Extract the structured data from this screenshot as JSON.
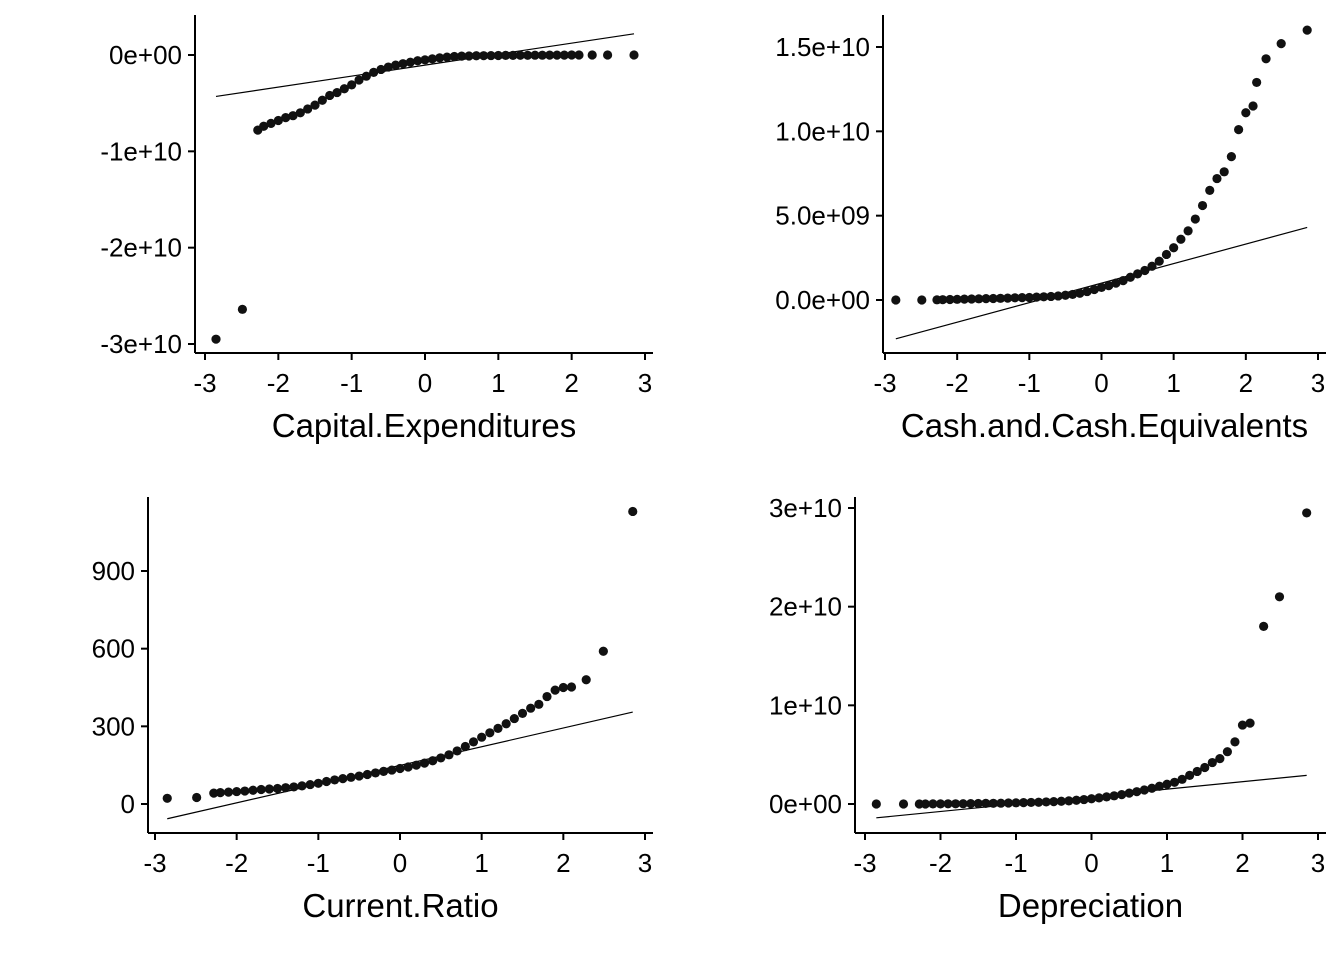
{
  "chart_data": [
    {
      "type": "scatter",
      "subtype": "qq-plot",
      "title": "",
      "xlabel": "Capital.Expenditures",
      "ylabel": "",
      "xlim": [
        -3.0,
        3.0
      ],
      "ylim": [
        -31000000000.0,
        4000000000.0
      ],
      "xticks": [
        -3,
        -2,
        -1,
        0,
        1,
        2,
        3
      ],
      "xtick_labels": [
        "-3",
        "-2",
        "-1",
        "0",
        "1",
        "2",
        "3"
      ],
      "yticks": [
        0,
        -10000000000.0,
        -20000000000.0,
        -30000000000.0
      ],
      "ytick_labels": [
        "0e+00",
        "-1e+10",
        "-2e+10",
        "-3e+10"
      ],
      "reference_line": {
        "x": [
          -2.85,
          2.85
        ],
        "y": [
          -4300000000.0,
          2200000000.0
        ]
      },
      "points": [
        [
          -2.85,
          -29500000000.0
        ],
        [
          -2.49,
          -26400000000.0
        ],
        [
          -2.28,
          -7800000000.0
        ],
        [
          -2.2,
          -7400000000.0
        ],
        [
          -2.1,
          -7100000000.0
        ],
        [
          -2.0,
          -6800000000.0
        ],
        [
          -1.9,
          -6500000000.0
        ],
        [
          -1.8,
          -6300000000.0
        ],
        [
          -1.7,
          -6000000000.0
        ],
        [
          -1.6,
          -5600000000.0
        ],
        [
          -1.5,
          -5200000000.0
        ],
        [
          -1.4,
          -4700000000.0
        ],
        [
          -1.3,
          -4200000000.0
        ],
        [
          -1.2,
          -3900000000.0
        ],
        [
          -1.1,
          -3500000000.0
        ],
        [
          -1.0,
          -3100000000.0
        ],
        [
          -0.9,
          -2600000000.0
        ],
        [
          -0.8,
          -2200000000.0
        ],
        [
          -0.7,
          -1800000000.0
        ],
        [
          -0.6,
          -1500000000.0
        ],
        [
          -0.5,
          -1250000000.0
        ],
        [
          -0.4,
          -1050000000.0
        ],
        [
          -0.3,
          -900000000.0
        ],
        [
          -0.2,
          -750000000.0
        ],
        [
          -0.1,
          -600000000.0
        ],
        [
          0.0,
          -500000000.0
        ],
        [
          0.1,
          -400000000.0
        ],
        [
          0.2,
          -300000000.0
        ],
        [
          0.3,
          -220000000.0
        ],
        [
          0.4,
          -150000000.0
        ],
        [
          0.5,
          -120000000.0
        ],
        [
          0.6,
          -100000000.0
        ],
        [
          0.7,
          -80000000.0
        ],
        [
          0.8,
          -70000000.0
        ],
        [
          0.9,
          -60000000.0
        ],
        [
          1.0,
          -50000000.0
        ],
        [
          1.1,
          -40000000.0
        ],
        [
          1.2,
          -40000000.0
        ],
        [
          1.3,
          -30000000.0
        ],
        [
          1.4,
          -30000000.0
        ],
        [
          1.5,
          -20000000.0
        ],
        [
          1.6,
          -20000000.0
        ],
        [
          1.7,
          -10000000.0
        ],
        [
          1.8,
          -10000000.0
        ],
        [
          1.9,
          -10000000.0
        ],
        [
          2.0,
          0.0
        ],
        [
          2.1,
          0.0
        ],
        [
          2.28,
          0.0
        ],
        [
          2.49,
          0.0
        ],
        [
          2.85,
          0.0
        ]
      ]
    },
    {
      "type": "scatter",
      "subtype": "qq-plot",
      "title": "",
      "xlabel": "Cash.and.Cash.Equivalents",
      "ylabel": "",
      "xlim": [
        -3.0,
        3.0
      ],
      "ylim": [
        -3200000000.0,
        16500000000.0
      ],
      "xticks": [
        -3,
        -2,
        -1,
        0,
        1,
        2,
        3
      ],
      "xtick_labels": [
        "-3",
        "-2",
        "-1",
        "0",
        "1",
        "2",
        "3"
      ],
      "yticks": [
        0,
        5000000000.0,
        10000000000.0,
        15000000000.0
      ],
      "ytick_labels": [
        "0.0e+00",
        "5.0e+09",
        "1.0e+10",
        "1.5e+10"
      ],
      "reference_line": {
        "x": [
          -2.85,
          2.85
        ],
        "y": [
          -2300000000.0,
          4300000000.0
        ]
      },
      "points": [
        [
          -2.85,
          0.0
        ],
        [
          -2.49,
          0.0
        ],
        [
          -2.28,
          10000000.0
        ],
        [
          -2.2,
          20000000.0
        ],
        [
          -2.1,
          30000000.0
        ],
        [
          -2.0,
          40000000.0
        ],
        [
          -1.9,
          50000000.0
        ],
        [
          -1.8,
          60000000.0
        ],
        [
          -1.7,
          70000000.0
        ],
        [
          -1.6,
          80000000.0
        ],
        [
          -1.5,
          90000000.0
        ],
        [
          -1.4,
          100000000.0
        ],
        [
          -1.3,
          110000000.0
        ],
        [
          -1.2,
          130000000.0
        ],
        [
          -1.1,
          140000000.0
        ],
        [
          -1.0,
          150000000.0
        ],
        [
          -0.9,
          170000000.0
        ],
        [
          -0.8,
          190000000.0
        ],
        [
          -0.7,
          210000000.0
        ],
        [
          -0.6,
          240000000.0
        ],
        [
          -0.5,
          280000000.0
        ],
        [
          -0.4,
          330000000.0
        ],
        [
          -0.3,
          400000000.0
        ],
        [
          -0.2,
          500000000.0
        ],
        [
          -0.1,
          620000000.0
        ],
        [
          0.0,
          750000000.0
        ],
        [
          0.1,
          850000000.0
        ],
        [
          0.2,
          1000000000.0
        ],
        [
          0.3,
          1150000000.0
        ],
        [
          0.4,
          1350000000.0
        ],
        [
          0.5,
          1550000000.0
        ],
        [
          0.6,
          1750000000.0
        ],
        [
          0.7,
          2000000000.0
        ],
        [
          0.8,
          2300000000.0
        ],
        [
          0.9,
          2700000000.0
        ],
        [
          1.0,
          3100000000.0
        ],
        [
          1.1,
          3600000000.0
        ],
        [
          1.2,
          4100000000.0
        ],
        [
          1.3,
          4800000000.0
        ],
        [
          1.4,
          5600000000.0
        ],
        [
          1.5,
          6500000000.0
        ],
        [
          1.6,
          7200000000.0
        ],
        [
          1.7,
          7600000000.0
        ],
        [
          1.8,
          8500000000.0
        ],
        [
          1.9,
          10100000000.0
        ],
        [
          2.0,
          11100000000.0
        ],
        [
          2.1,
          11500000000.0
        ],
        [
          2.15,
          12900000000.0
        ],
        [
          2.28,
          14300000000.0
        ],
        [
          2.49,
          15200000000.0
        ],
        [
          2.85,
          16000000000.0
        ]
      ]
    },
    {
      "type": "scatter",
      "subtype": "qq-plot",
      "title": "",
      "xlabel": "Current.Ratio",
      "ylabel": "",
      "xlim": [
        -3.0,
        3.0
      ],
      "ylim": [
        -115,
        1150
      ],
      "xticks": [
        -3,
        -2,
        -1,
        0,
        1,
        2,
        3
      ],
      "xtick_labels": [
        "-3",
        "-2",
        "-1",
        "0",
        "1",
        "2",
        "3"
      ],
      "yticks": [
        0,
        300,
        600,
        900
      ],
      "ytick_labels": [
        "0",
        "300",
        "600",
        "900"
      ],
      "reference_line": {
        "x": [
          -2.85,
          2.85
        ],
        "y": [
          -57,
          355
        ]
      },
      "points": [
        [
          -2.85,
          22
        ],
        [
          -2.49,
          25
        ],
        [
          -2.28,
          42
        ],
        [
          -2.2,
          44
        ],
        [
          -2.1,
          46
        ],
        [
          -2.0,
          48
        ],
        [
          -1.9,
          50
        ],
        [
          -1.8,
          53
        ],
        [
          -1.7,
          56
        ],
        [
          -1.6,
          58
        ],
        [
          -1.5,
          60
        ],
        [
          -1.4,
          63
        ],
        [
          -1.3,
          66
        ],
        [
          -1.2,
          70
        ],
        [
          -1.1,
          75
        ],
        [
          -1.0,
          80
        ],
        [
          -0.9,
          87
        ],
        [
          -0.8,
          93
        ],
        [
          -0.7,
          98
        ],
        [
          -0.6,
          103
        ],
        [
          -0.5,
          108
        ],
        [
          -0.4,
          114
        ],
        [
          -0.3,
          120
        ],
        [
          -0.2,
          126
        ],
        [
          -0.1,
          131
        ],
        [
          0.0,
          137
        ],
        [
          0.1,
          143
        ],
        [
          0.2,
          150
        ],
        [
          0.3,
          158
        ],
        [
          0.4,
          167
        ],
        [
          0.5,
          178
        ],
        [
          0.6,
          190
        ],
        [
          0.7,
          205
        ],
        [
          0.8,
          222
        ],
        [
          0.9,
          240
        ],
        [
          1.0,
          258
        ],
        [
          1.1,
          275
        ],
        [
          1.2,
          292
        ],
        [
          1.3,
          310
        ],
        [
          1.4,
          330
        ],
        [
          1.5,
          350
        ],
        [
          1.6,
          370
        ],
        [
          1.7,
          385
        ],
        [
          1.8,
          415
        ],
        [
          1.9,
          440
        ],
        [
          2.0,
          450
        ],
        [
          2.1,
          452
        ],
        [
          2.28,
          480
        ],
        [
          2.49,
          590
        ],
        [
          2.85,
          1130
        ]
      ]
    },
    {
      "type": "scatter",
      "subtype": "qq-plot",
      "title": "",
      "xlabel": "Depreciation",
      "ylabel": "",
      "xlim": [
        -3.0,
        3.0
      ],
      "ylim": [
        -3000000000.0,
        31000000000.0
      ],
      "xticks": [
        -3,
        -2,
        -1,
        0,
        1,
        2,
        3
      ],
      "xtick_labels": [
        "-3",
        "-2",
        "-1",
        "0",
        "1",
        "2",
        "3"
      ],
      "yticks": [
        0,
        10000000000.0,
        20000000000.0,
        30000000000.0
      ],
      "ytick_labels": [
        "0e+00",
        "1e+10",
        "2e+10",
        "3e+10"
      ],
      "reference_line": {
        "x": [
          -2.85,
          2.85
        ],
        "y": [
          -1400000000.0,
          2900000000.0
        ]
      },
      "points": [
        [
          -2.85,
          0.0
        ],
        [
          -2.49,
          0.0
        ],
        [
          -2.28,
          0.0
        ],
        [
          -2.2,
          0.0
        ],
        [
          -2.1,
          10000000.0
        ],
        [
          -2.0,
          10000000.0
        ],
        [
          -1.9,
          20000000.0
        ],
        [
          -1.8,
          20000000.0
        ],
        [
          -1.7,
          30000000.0
        ],
        [
          -1.6,
          40000000.0
        ],
        [
          -1.5,
          50000000.0
        ],
        [
          -1.4,
          60000000.0
        ],
        [
          -1.3,
          70000000.0
        ],
        [
          -1.2,
          80000000.0
        ],
        [
          -1.1,
          100000000.0
        ],
        [
          -1.0,
          120000000.0
        ],
        [
          -0.9,
          140000000.0
        ],
        [
          -0.8,
          160000000.0
        ],
        [
          -0.7,
          180000000.0
        ],
        [
          -0.6,
          210000000.0
        ],
        [
          -0.5,
          240000000.0
        ],
        [
          -0.4,
          280000000.0
        ],
        [
          -0.3,
          320000000.0
        ],
        [
          -0.2,
          380000000.0
        ],
        [
          -0.1,
          450000000.0
        ],
        [
          0.0,
          530000000.0
        ],
        [
          0.1,
          620000000.0
        ],
        [
          0.2,
          720000000.0
        ],
        [
          0.3,
          830000000.0
        ],
        [
          0.4,
          950000000.0
        ],
        [
          0.5,
          1100000000.0
        ],
        [
          0.6,
          1250000000.0
        ],
        [
          0.7,
          1420000000.0
        ],
        [
          0.8,
          1600000000.0
        ],
        [
          0.9,
          1800000000.0
        ],
        [
          1.0,
          2000000000.0
        ],
        [
          1.1,
          2200000000.0
        ],
        [
          1.2,
          2500000000.0
        ],
        [
          1.3,
          2900000000.0
        ],
        [
          1.4,
          3300000000.0
        ],
        [
          1.5,
          3700000000.0
        ],
        [
          1.6,
          4200000000.0
        ],
        [
          1.7,
          4600000000.0
        ],
        [
          1.8,
          5300000000.0
        ],
        [
          1.9,
          6300000000.0
        ],
        [
          2.0,
          8000000000.0
        ],
        [
          2.1,
          8200000000.0
        ],
        [
          2.28,
          18000000000.0
        ],
        [
          2.49,
          21000000000.0
        ],
        [
          2.85,
          29500000000.0
        ]
      ]
    }
  ]
}
